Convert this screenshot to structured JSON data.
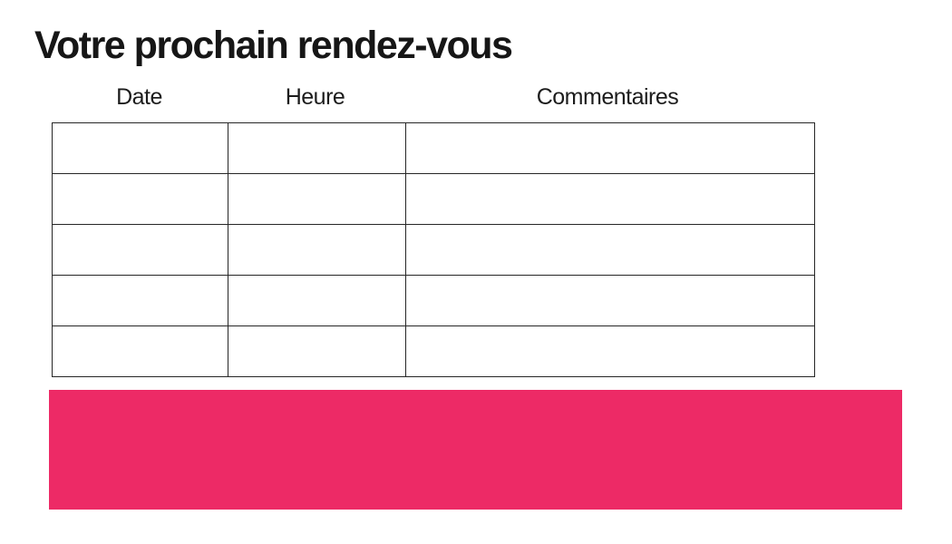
{
  "page": {
    "title": "Votre prochain rendez-vous"
  },
  "appointments_table": {
    "headers": [
      "Date",
      "Heure",
      "Commentaires"
    ],
    "rows": [
      [
        "",
        "",
        ""
      ],
      [
        "",
        "",
        ""
      ],
      [
        "",
        "",
        ""
      ],
      [
        "",
        "",
        ""
      ],
      [
        "",
        "",
        ""
      ]
    ]
  },
  "banner": {
    "label": ""
  },
  "colors": {
    "background": "#FFFFFF",
    "text": "#161616",
    "table_border": "#262626",
    "accent_pink": "#ED2A66"
  }
}
